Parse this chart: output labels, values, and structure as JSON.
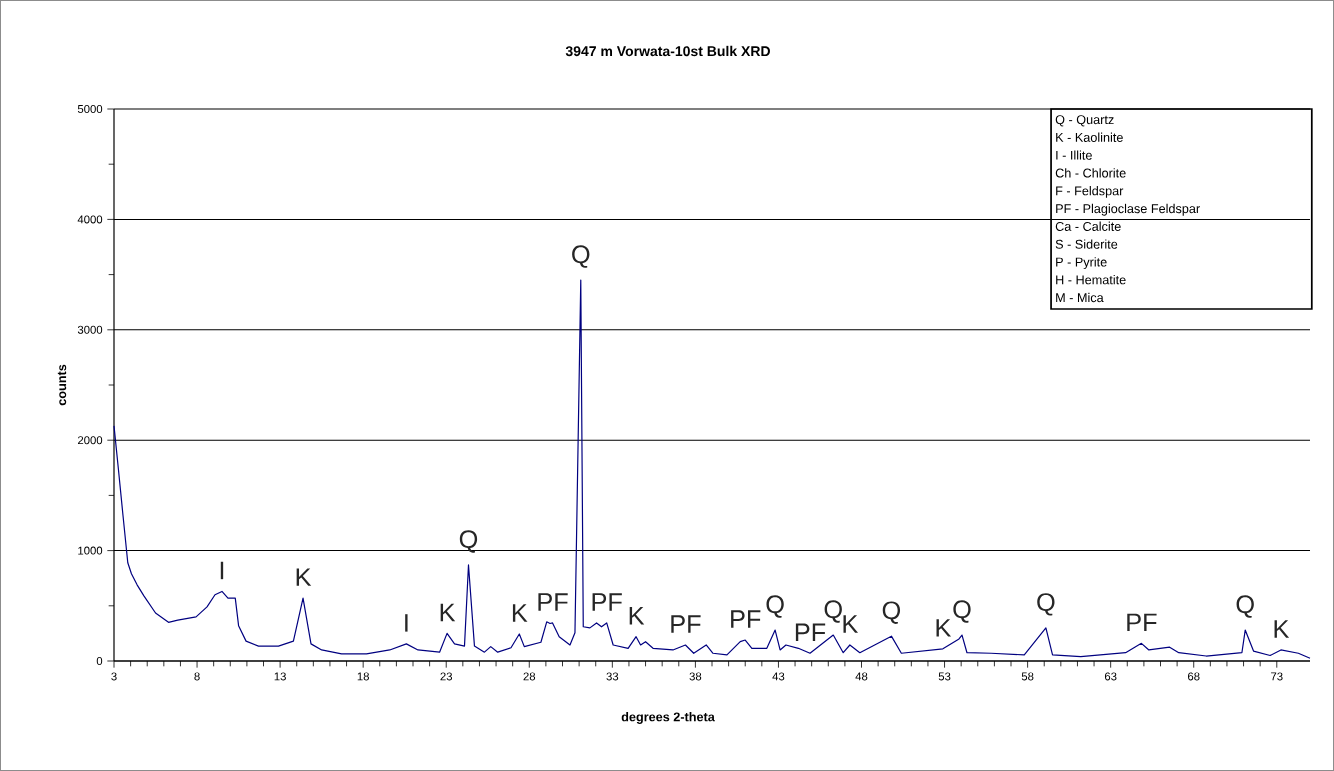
{
  "chart_data": {
    "type": "line",
    "title": "3947 m Vorwata-10st Bulk XRD",
    "xlabel": "degrees 2-theta",
    "ylabel": "counts",
    "xlim": [
      3,
      75
    ],
    "ylim": [
      0,
      5000
    ],
    "xticks": [
      3,
      8,
      13,
      18,
      23,
      28,
      33,
      38,
      43,
      48,
      53,
      58,
      63,
      68,
      73
    ],
    "yticks": [
      0,
      1000,
      2000,
      3000,
      4000,
      5000
    ],
    "grid": "y",
    "marker": "none",
    "line_style": "solid",
    "series": [
      {
        "color": "#000080",
        "x": [
          3,
          3.27,
          3.54,
          3.83,
          4.05,
          4.39,
          4.8,
          5.5,
          6.28,
          6.84,
          7.94,
          8.6,
          9.08,
          9.5,
          9.86,
          10.3,
          10.5,
          10.95,
          11.7,
          12.9,
          13.8,
          14.38,
          14.86,
          15.5,
          16.7,
          18.2,
          19.6,
          20.6,
          21.3,
          22.6,
          23.05,
          23.5,
          24.1,
          24.34,
          24.7,
          25.3,
          25.68,
          26.1,
          26.9,
          27.4,
          27.7,
          28.7,
          29.05,
          29.25,
          29.4,
          29.8,
          30.45,
          30.75,
          31.1,
          31.25,
          31.65,
          32.05,
          32.35,
          32.66,
          33.05,
          33.95,
          34.43,
          34.7,
          35,
          35.45,
          36.65,
          37.4,
          37.9,
          38.65,
          39.06,
          39.9,
          40.7,
          41,
          41.4,
          42.3,
          42.8,
          43.1,
          43.45,
          44.2,
          44.9,
          46.3,
          46.9,
          47.3,
          47.9,
          49.8,
          50.4,
          52.9,
          53.87,
          54.05,
          54.35,
          55.8,
          57.8,
          59.1,
          59.5,
          61.2,
          63.9,
          64.85,
          65.3,
          66.55,
          67.1,
          68.75,
          70.9,
          71.1,
          71.6,
          72.6,
          73.25,
          74.3,
          75
        ],
        "values": [
          2130,
          1730,
          1320,
          890,
          790,
          690,
          590,
          435,
          350,
          370,
          400,
          490,
          600,
          630,
          570,
          570,
          320,
          180,
          135,
          135,
          180,
          570,
          155,
          100,
          65,
          65,
          100,
          155,
          100,
          80,
          250,
          155,
          135,
          870,
          135,
          80,
          130,
          80,
          120,
          245,
          130,
          170,
          355,
          340,
          345,
          220,
          145,
          255,
          3450,
          310,
          300,
          345,
          310,
          345,
          145,
          115,
          220,
          145,
          175,
          115,
          100,
          145,
          70,
          145,
          70,
          55,
          175,
          190,
          115,
          115,
          280,
          100,
          145,
          115,
          70,
          235,
          75,
          145,
          75,
          225,
          70,
          110,
          200,
          235,
          75,
          70,
          55,
          300,
          55,
          40,
          75,
          160,
          100,
          125,
          75,
          45,
          75,
          280,
          90,
          50,
          100,
          70,
          25
        ]
      }
    ],
    "annotations": [
      {
        "text": "I",
        "x": 9.5,
        "y": 630
      },
      {
        "text": "K",
        "x": 14.38,
        "y": 570
      },
      {
        "text": "I",
        "x": 20.6,
        "y": 155
      },
      {
        "text": "K",
        "x": 23.05,
        "y": 250
      },
      {
        "text": "Q",
        "x": 24.34,
        "y": 870
      },
      {
        "text": "K",
        "x": 27.4,
        "y": 245
      },
      {
        "text": "PF",
        "x": 29.4,
        "y": 345
      },
      {
        "text": "Q",
        "x": 31.1,
        "y": 3450
      },
      {
        "text": "PF",
        "x": 32.66,
        "y": 345
      },
      {
        "text": "K",
        "x": 34.43,
        "y": 220
      },
      {
        "text": "PF",
        "x": 37.4,
        "y": 145
      },
      {
        "text": "PF",
        "x": 41,
        "y": 190
      },
      {
        "text": "Q",
        "x": 42.8,
        "y": 280
      },
      {
        "text": "PF",
        "x": 44.9,
        "y": 70
      },
      {
        "text": "Q",
        "x": 46.3,
        "y": 235
      },
      {
        "text": "K",
        "x": 47.3,
        "y": 145
      },
      {
        "text": "Q",
        "x": 49.8,
        "y": 225
      },
      {
        "text": "K",
        "x": 52.9,
        "y": 110
      },
      {
        "text": "Q",
        "x": 54.05,
        "y": 235
      },
      {
        "text": "Q",
        "x": 59.1,
        "y": 300
      },
      {
        "text": "PF",
        "x": 64.85,
        "y": 160
      },
      {
        "text": "Q",
        "x": 71.1,
        "y": 280
      },
      {
        "text": "K",
        "x": 73.25,
        "y": 100
      },
      "Q - Quartz",
      "K - Kaolinite",
      "I  - Illite",
      "Ch - Chlorite",
      "F - Feldspar",
      "PF - Plagioclase Feldspar",
      "Ca - Calcite",
      "S - Siderite",
      "P - Pyrite",
      "H - Hematite",
      "M - Mica"
    ]
  }
}
